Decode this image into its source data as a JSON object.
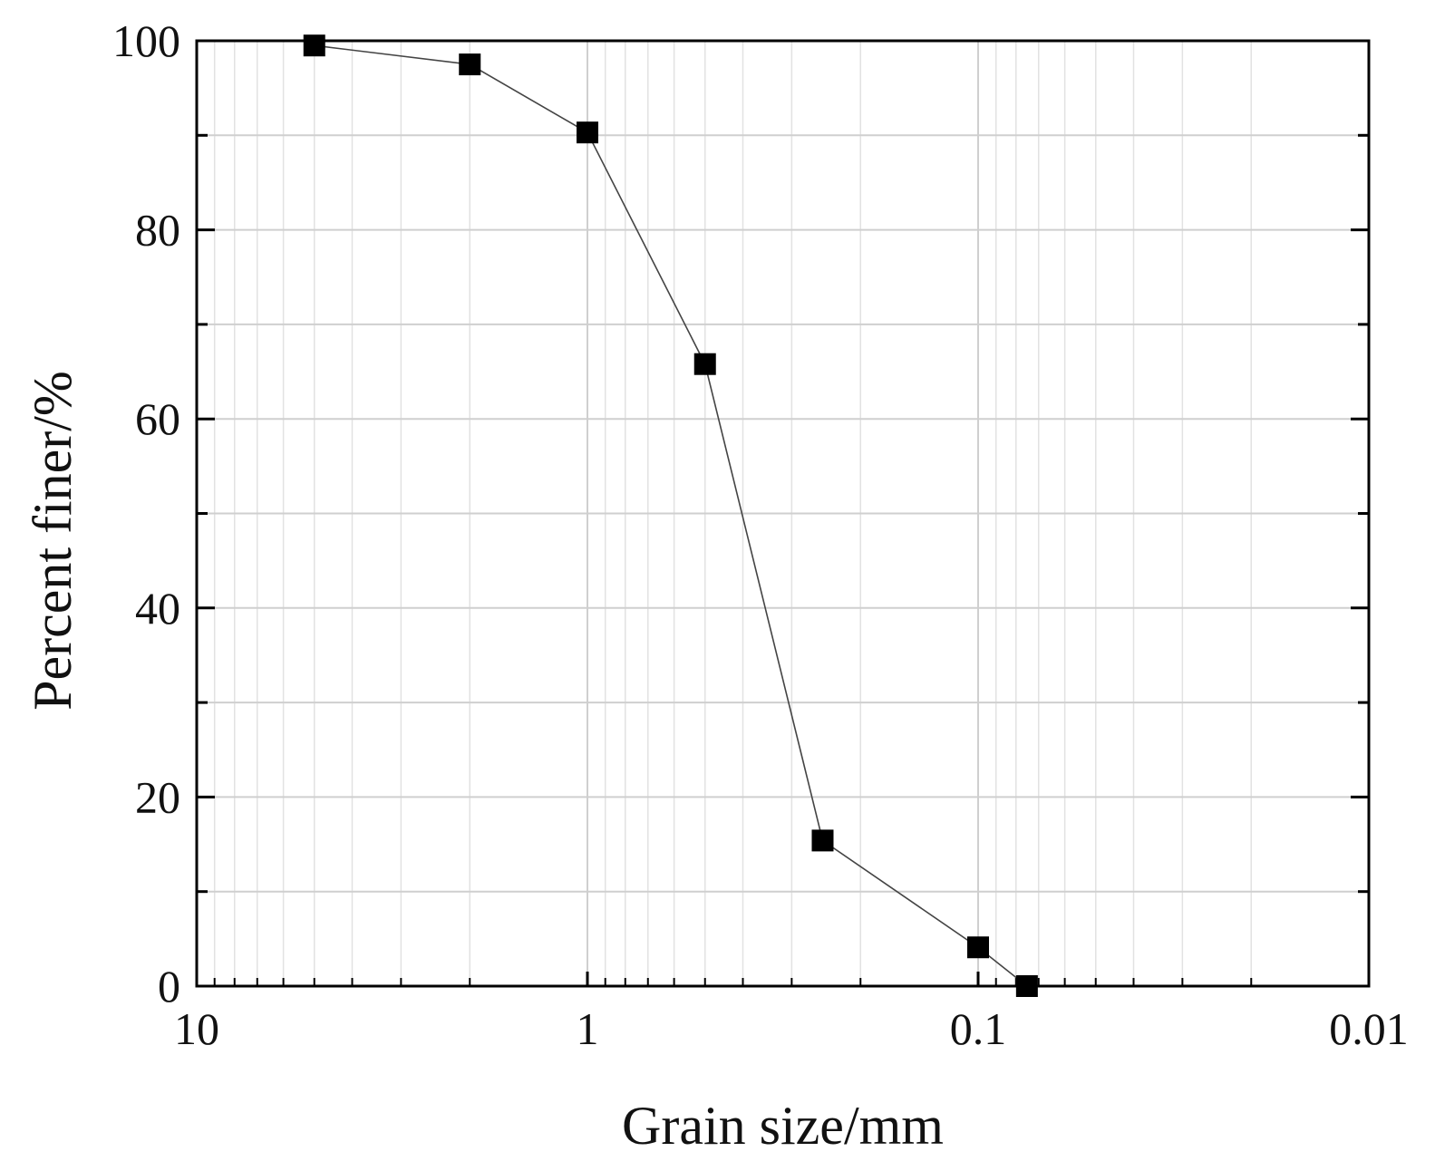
{
  "chart_data": {
    "type": "scatter",
    "title": "",
    "xlabel": "Grain size/mm",
    "ylabel": "Percent finer/%",
    "xscale": "log",
    "x_reversed": true,
    "xlim": [
      10,
      0.01
    ],
    "ylim": [
      0,
      100
    ],
    "xticks": [
      10,
      1,
      0.1,
      0.01
    ],
    "xtick_labels": [
      "10",
      "1",
      "0.1",
      "0.01"
    ],
    "yticks": [
      0,
      20,
      40,
      60,
      80,
      100
    ],
    "ytick_labels": [
      "0",
      "20",
      "40",
      "60",
      "80",
      "100"
    ],
    "y_minor_ticks": [
      10,
      30,
      50,
      70,
      90
    ],
    "grid": true,
    "legend": "none",
    "marker": "square",
    "line_style": "thin solid",
    "colors": {
      "marker": "#000000",
      "line": "#444444",
      "grid": "#cfcfcf"
    },
    "series": [
      {
        "x": [
          5,
          2,
          1,
          0.5,
          0.25,
          0.1,
          0.075
        ],
        "y": [
          99.5,
          97.5,
          90.3,
          65.8,
          15.4,
          4.1,
          0
        ]
      }
    ]
  }
}
